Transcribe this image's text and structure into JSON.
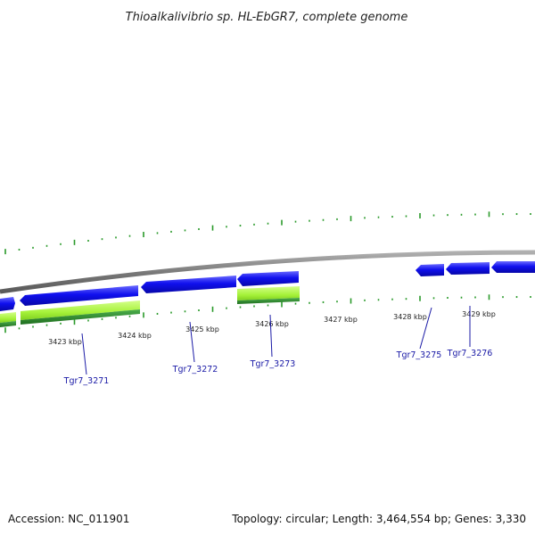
{
  "title": "Thioalkalivibrio sp. HL-EbGR7, complete genome",
  "colors": {
    "backbone": "#8c8c8c",
    "gene_forward": "#1414f0",
    "gene_reverse": "#1414f0",
    "cds_feature": "#aaf53c",
    "cds_feature_dark": "#2d8c2d",
    "gc_skew": "#2a9a2a",
    "label_line": "#1a1aa6"
  },
  "ruler_labels": [
    "3423 kbp",
    "3424 kbp",
    "3425 kbp",
    "3426 kbp",
    "3427 kbp",
    "3428 kbp",
    "3429 kbp"
  ],
  "gene_labels": [
    "Tgr7_3271",
    "Tgr7_3272",
    "Tgr7_3273",
    "Tgr7_3275",
    "Tgr7_3276"
  ],
  "footer": {
    "accession": "Accession: NC_011901",
    "topology": "Topology: circular; Length: 3,464,554 bp; Genes: 3,330"
  }
}
